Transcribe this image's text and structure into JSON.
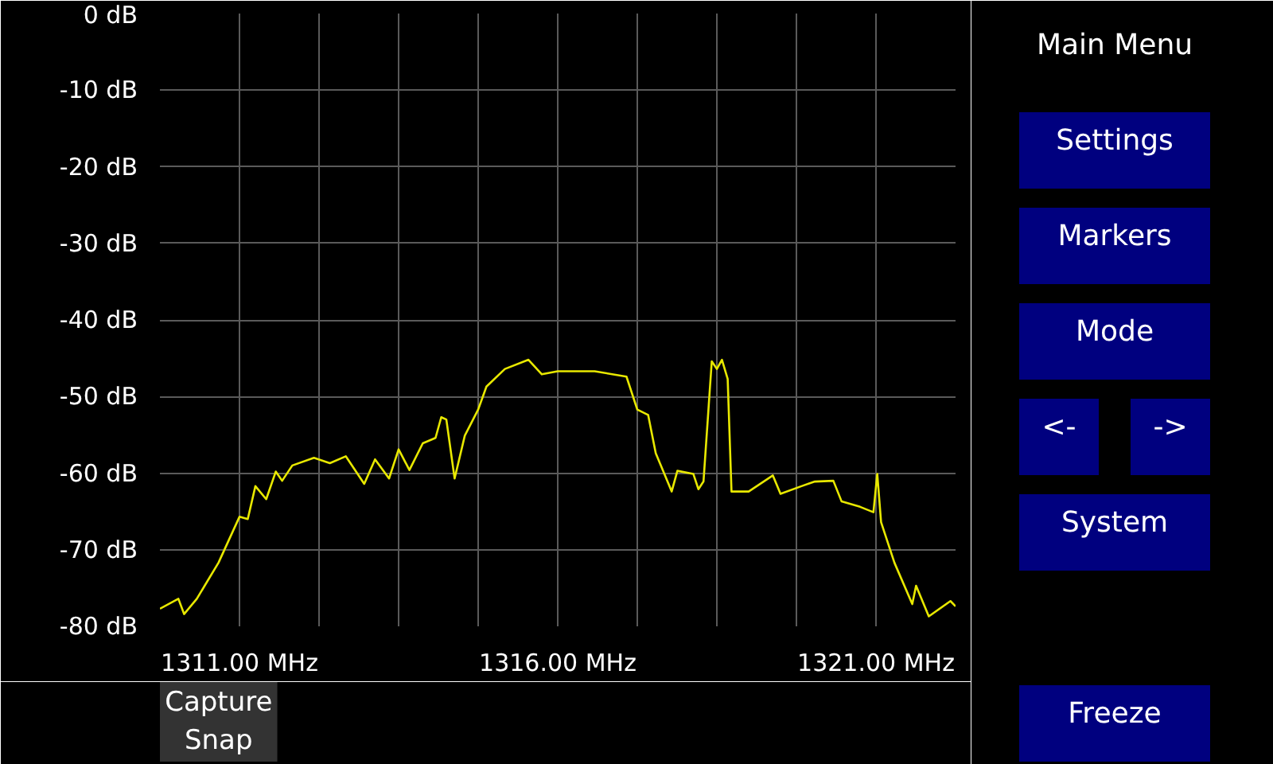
{
  "chart_data": {
    "type": "line",
    "x": [
      1309.75,
      1310.04,
      1310.13,
      1310.33,
      1310.67,
      1311.0,
      1311.13,
      1311.25,
      1311.42,
      1311.57,
      1311.67,
      1311.83,
      1312.17,
      1312.42,
      1312.67,
      1312.96,
      1313.13,
      1313.35,
      1313.5,
      1313.67,
      1313.88,
      1314.08,
      1314.17,
      1314.25,
      1314.38,
      1314.54,
      1314.75,
      1314.88,
      1315.17,
      1315.54,
      1315.75,
      1316.0,
      1316.33,
      1316.58,
      1317.08,
      1317.25,
      1317.42,
      1317.54,
      1317.79,
      1317.88,
      1318.13,
      1318.21,
      1318.29,
      1318.42,
      1318.5,
      1318.58,
      1318.67,
      1318.73,
      1319.0,
      1319.38,
      1319.5,
      1319.83,
      1320.04,
      1320.33,
      1320.46,
      1320.75,
      1320.96,
      1321.02,
      1321.08,
      1321.29,
      1321.57,
      1321.63,
      1321.83,
      1322.17,
      1322.25
    ],
    "series": [
      {
        "color": "#e8e800",
        "values": [
          -77.7,
          -76.4,
          -78.4,
          -76.4,
          -71.7,
          -65.7,
          -66,
          -61.7,
          -63.4,
          -59.8,
          -61,
          -59,
          -58,
          -58.7,
          -57.8,
          -61.4,
          -58.2,
          -60.7,
          -56.9,
          -59.6,
          -56.1,
          -55.4,
          -52.7,
          -53,
          -60.7,
          -55.1,
          -51.7,
          -48.7,
          -46.4,
          -45.2,
          -47.1,
          -46.7,
          -46.7,
          -46.7,
          -47.4,
          -51.7,
          -52.4,
          -57.4,
          -62.4,
          -59.7,
          -60.1,
          -62.1,
          -61.1,
          -45.4,
          -46.4,
          -45.2,
          -47.7,
          -62.4,
          -62.4,
          -60.3,
          -62.7,
          -61.7,
          -61.1,
          -61,
          -63.7,
          -64.4,
          -65.1,
          -60.1,
          -66.4,
          -71.7,
          -77.1,
          -74.7,
          -78.7,
          -76.7,
          -77.4
        ]
      }
    ],
    "xlim": [
      1309.75,
      1322.25
    ],
    "ylim": [
      -80,
      0
    ],
    "xticks": [
      {
        "value": 1311,
        "label": "1311.00 MHz"
      },
      {
        "value": 1312.25,
        "label": null
      },
      {
        "value": 1313.5,
        "label": null
      },
      {
        "value": 1314.75,
        "label": null
      },
      {
        "value": 1316,
        "label": "1316.00 MHz"
      },
      {
        "value": 1317.25,
        "label": null
      },
      {
        "value": 1318.5,
        "label": null
      },
      {
        "value": 1319.75,
        "label": null
      },
      {
        "value": 1321,
        "label": "1321.00 MHz"
      }
    ],
    "yticks": [
      {
        "value": -80,
        "label": "-80 dB"
      },
      {
        "value": -70,
        "label": "-70 dB"
      },
      {
        "value": -60,
        "label": "-60 dB"
      },
      {
        "value": -50,
        "label": "-50 dB"
      },
      {
        "value": -40,
        "label": "-40 dB"
      },
      {
        "value": -30,
        "label": "-30 dB"
      },
      {
        "value": -20,
        "label": "-20 dB"
      },
      {
        "value": -10,
        "label": "-10 dB"
      },
      {
        "value": 0,
        "label": "0 dB"
      }
    ],
    "grid": true,
    "annotations": [
      "Main Menu",
      "Settings",
      "Markers",
      "Mode",
      "<-",
      "->",
      "System",
      "Freeze",
      "Capture\nSnap"
    ]
  }
}
